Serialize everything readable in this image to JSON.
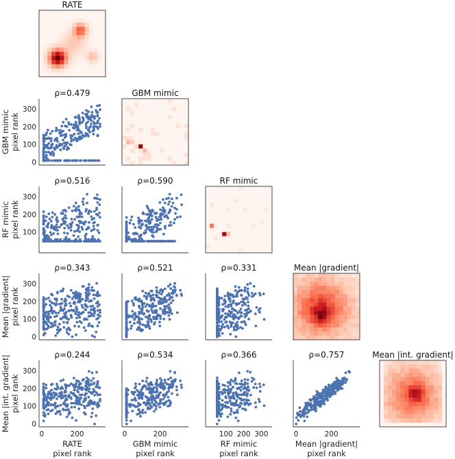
{
  "chart_data": {
    "type": "scatter-matrix",
    "title": "",
    "variables": [
      "RATE",
      "GBM mimic",
      "RF mimic",
      "Mean |gradient|",
      "Mean |int. gradient|"
    ],
    "diagonal_titles": [
      "RATE",
      "GBM mimic",
      "RF mimic",
      "Mean |gradient|",
      "Mean |int. gradient|"
    ],
    "row_ylabels": [
      [
        "GBM mimic",
        "pixel rank"
      ],
      [
        "RF mimic",
        "pixel rank"
      ],
      [
        "Mean |gradient|",
        "pixel rank"
      ],
      [
        "Mean |int. gradient|",
        "pixel rank"
      ]
    ],
    "col_xlabels": [
      [
        "RATE",
        "pixel rank"
      ],
      [
        "GBM mimic",
        "pixel rank"
      ],
      [
        "RF mimic",
        "pixel rank"
      ],
      [
        "Mean |gradient|",
        "pixel rank"
      ]
    ],
    "correlations": {
      "1-0": "ρ=0.479",
      "2-0": "ρ=0.516",
      "2-1": "ρ=0.590",
      "3-0": "ρ=0.343",
      "3-1": "ρ=0.521",
      "3-2": "ρ=0.331",
      "4-0": "ρ=0.244",
      "4-1": "ρ=0.534",
      "4-2": "ρ=0.366",
      "4-3": "ρ=0.757"
    },
    "rank_floor": {
      "RATE": 10,
      "GBM mimic": 10,
      "RF mimic": 50,
      "Mean |gradient|": 0,
      "Mean |int. gradient|": 0
    },
    "rank_max": 330,
    "y_ticks": {
      "GBM mimic": [
        "0",
        "100",
        "200",
        "300"
      ],
      "RF mimic": [
        "100",
        "200",
        "300"
      ],
      "Mean |gradient|": [
        "0",
        "100",
        "200",
        "300"
      ],
      "Mean |int. gradient|": [
        "0",
        "100",
        "200",
        "300"
      ]
    },
    "x_ticks": {
      "RATE": [
        "0",
        "200"
      ],
      "GBM mimic": [
        "0",
        "200"
      ],
      "RF mimic": [
        "100",
        "200",
        "300"
      ],
      "Mean |gradient|": [
        "0",
        "200"
      ]
    },
    "point_color": "#4c72b0",
    "heatmap_color": "#b2182b"
  }
}
